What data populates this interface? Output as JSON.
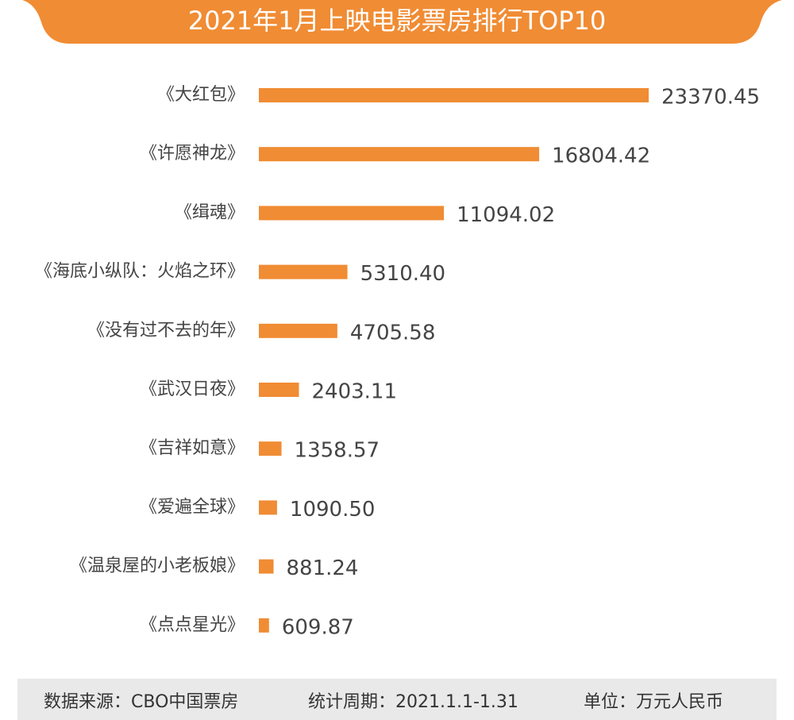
{
  "chart_data": {
    "type": "hbar",
    "title": "2021年1月上映电影票房排行TOP10",
    "categories": [
      "《大红包》",
      "《许愿神龙》",
      "《缉魂》",
      "《海底小纵队：火焰之环》",
      "《没有过不去的年》",
      "《武汉日夜》",
      "《吉祥如意》",
      "《爱遍全球》",
      "《温泉屋的小老板娘》",
      "《点点星光》"
    ],
    "values": [
      23370.45,
      16804.42,
      11094.02,
      5310.4,
      4705.58,
      2403.11,
      1358.57,
      1090.5,
      881.24,
      609.87
    ],
    "value_labels": [
      "23370.45",
      "16804.42",
      "11094.02",
      "5310.40",
      "4705.58",
      "2403.11",
      "1358.57",
      "1090.50",
      "881.24",
      "609.87"
    ],
    "color": "#f08c34",
    "source": "数据来源：CBO中国票房",
    "period": "统计周期：2021.1.1-1.31",
    "unit": "单位：万元人民币"
  }
}
